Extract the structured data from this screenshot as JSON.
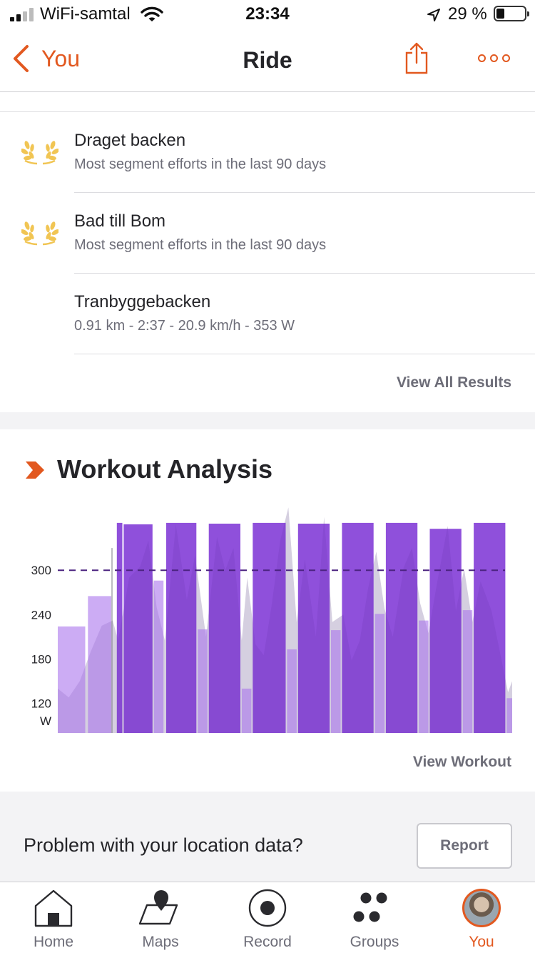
{
  "status_bar": {
    "carrier": "WiFi-samtal",
    "time": "23:34",
    "battery_percent": "29 %",
    "battery_level": 0.29
  },
  "nav": {
    "back_label": "You",
    "title": "Ride"
  },
  "segments": [
    {
      "name": "Draget backen",
      "detail": "Most segment efforts in the last 90 days",
      "icon": "laurel-icon"
    },
    {
      "name": "Bad till Bom",
      "detail": "Most segment efforts in the last 90 days",
      "icon": "laurel-icon"
    },
    {
      "name": "Tranbyggebacken",
      "detail": "0.91 km - 2:37 - 20.9 km/h - 353 W",
      "icon": ""
    }
  ],
  "view_all_label": "View All Results",
  "workout": {
    "title": "Workout Analysis",
    "view_label": "View Workout"
  },
  "chart_data": {
    "type": "bar",
    "ylabel": "W",
    "y_ticks": [
      120,
      180,
      240,
      300
    ],
    "ylim": [
      80,
      390
    ],
    "reference_line": 300,
    "bars": [
      {
        "x0": 0.0,
        "x1": 1.0,
        "value": 224,
        "kind": "rest"
      },
      {
        "x0": 1.1,
        "x1": 1.95,
        "value": 265,
        "kind": "rest"
      },
      {
        "x0": 2.15,
        "x1": 2.35,
        "value": 364,
        "kind": "work"
      },
      {
        "x0": 2.4,
        "x1": 3.45,
        "value": 362,
        "kind": "work"
      },
      {
        "x0": 3.5,
        "x1": 3.85,
        "value": 286,
        "kind": "rest"
      },
      {
        "x0": 3.95,
        "x1": 5.05,
        "value": 364,
        "kind": "work"
      },
      {
        "x0": 5.1,
        "x1": 5.45,
        "value": 220,
        "kind": "rest"
      },
      {
        "x0": 5.5,
        "x1": 6.65,
        "value": 363,
        "kind": "work"
      },
      {
        "x0": 6.7,
        "x1": 7.05,
        "value": 140,
        "kind": "rest"
      },
      {
        "x0": 7.1,
        "x1": 8.3,
        "value": 364,
        "kind": "work"
      },
      {
        "x0": 8.35,
        "x1": 8.7,
        "value": 193,
        "kind": "rest"
      },
      {
        "x0": 8.75,
        "x1": 9.9,
        "value": 363,
        "kind": "work"
      },
      {
        "x0": 9.95,
        "x1": 10.3,
        "value": 219,
        "kind": "rest"
      },
      {
        "x0": 10.35,
        "x1": 11.5,
        "value": 364,
        "kind": "work"
      },
      {
        "x0": 11.55,
        "x1": 11.9,
        "value": 241,
        "kind": "rest"
      },
      {
        "x0": 11.95,
        "x1": 13.1,
        "value": 364,
        "kind": "work"
      },
      {
        "x0": 13.15,
        "x1": 13.5,
        "value": 232,
        "kind": "rest"
      },
      {
        "x0": 13.55,
        "x1": 14.7,
        "value": 356,
        "kind": "work"
      },
      {
        "x0": 14.75,
        "x1": 15.1,
        "value": 246,
        "kind": "rest"
      },
      {
        "x0": 15.15,
        "x1": 16.3,
        "value": 364,
        "kind": "work"
      },
      {
        "x0": 16.35,
        "x1": 16.55,
        "value": 127,
        "kind": "rest"
      }
    ],
    "power_trace": [
      [
        0.0,
        140
      ],
      [
        0.4,
        128
      ],
      [
        0.8,
        150
      ],
      [
        1.2,
        190
      ],
      [
        1.6,
        225
      ],
      [
        2.0,
        232
      ],
      [
        2.2,
        205
      ],
      [
        2.6,
        290
      ],
      [
        3.0,
        305
      ],
      [
        3.3,
        340
      ],
      [
        3.6,
        250
      ],
      [
        3.9,
        205
      ],
      [
        4.3,
        362
      ],
      [
        4.7,
        260
      ],
      [
        5.0,
        320
      ],
      [
        5.4,
        210
      ],
      [
        5.8,
        345
      ],
      [
        6.1,
        300
      ],
      [
        6.4,
        330
      ],
      [
        6.7,
        205
      ],
      [
        6.9,
        290
      ],
      [
        7.2,
        200
      ],
      [
        7.5,
        185
      ],
      [
        7.8,
        255
      ],
      [
        8.1,
        340
      ],
      [
        8.4,
        385
      ],
      [
        8.7,
        230
      ],
      [
        9.0,
        315
      ],
      [
        9.4,
        210
      ],
      [
        9.7,
        372
      ],
      [
        10.0,
        230
      ],
      [
        10.4,
        240
      ],
      [
        10.7,
        178
      ],
      [
        11.0,
        205
      ],
      [
        11.3,
        275
      ],
      [
        11.6,
        325
      ],
      [
        11.9,
        248
      ],
      [
        12.2,
        210
      ],
      [
        12.6,
        304
      ],
      [
        12.9,
        330
      ],
      [
        13.2,
        255
      ],
      [
        13.5,
        215
      ],
      [
        13.8,
        280
      ],
      [
        14.2,
        360
      ],
      [
        14.5,
        245
      ],
      [
        14.8,
        302
      ],
      [
        15.1,
        230
      ],
      [
        15.4,
        285
      ],
      [
        15.8,
        245
      ],
      [
        16.2,
        172
      ],
      [
        16.4,
        135
      ],
      [
        16.55,
        150
      ]
    ],
    "colors": {
      "work": "#8743d8",
      "rest": "#c5a0f2",
      "reference": "#4b2380",
      "trace": "#e6e6ea"
    }
  },
  "problem": {
    "text": "Problem with your location data?",
    "button": "Report"
  },
  "tabbar": {
    "items": [
      {
        "label": "Home",
        "icon": "home-icon"
      },
      {
        "label": "Maps",
        "icon": "map-icon"
      },
      {
        "label": "Record",
        "icon": "record-icon"
      },
      {
        "label": "Groups",
        "icon": "groups-icon"
      },
      {
        "label": "You",
        "icon": "avatar",
        "active": true
      }
    ]
  },
  "colors": {
    "accent": "#e2581f",
    "gold": "#f1c553",
    "text": "#242428",
    "muted": "#6d6d78"
  }
}
